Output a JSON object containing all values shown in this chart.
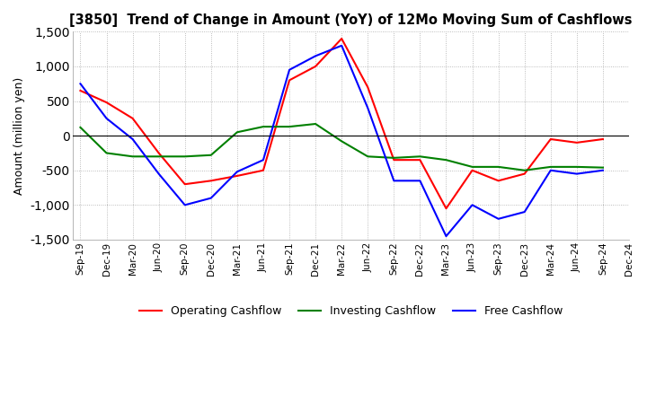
{
  "title": "[3850]  Trend of Change in Amount (YoY) of 12Mo Moving Sum of Cashflows",
  "ylabel": "Amount (million yen)",
  "x_labels": [
    "Sep-19",
    "Dec-19",
    "Mar-20",
    "Jun-20",
    "Sep-20",
    "Dec-20",
    "Mar-21",
    "Jun-21",
    "Sep-21",
    "Dec-21",
    "Mar-22",
    "Jun-22",
    "Sep-22",
    "Dec-22",
    "Mar-23",
    "Jun-23",
    "Sep-23",
    "Dec-23",
    "Mar-24",
    "Jun-24",
    "Sep-24",
    "Dec-24"
  ],
  "operating": [
    650,
    480,
    250,
    -250,
    -700,
    -650,
    -580,
    -500,
    800,
    1000,
    1400,
    700,
    -350,
    -350,
    -1050,
    -500,
    -650,
    -550,
    -50,
    -100,
    -50,
    null
  ],
  "investing": [
    120,
    -250,
    -300,
    -300,
    -300,
    -280,
    50,
    130,
    130,
    170,
    -80,
    -300,
    -320,
    -300,
    -350,
    -450,
    -450,
    -500,
    -450,
    -450,
    -460,
    null
  ],
  "free": [
    750,
    250,
    -50,
    -550,
    -1000,
    -900,
    -520,
    -350,
    950,
    1150,
    1300,
    400,
    -650,
    -650,
    -1450,
    -1000,
    -1200,
    -1100,
    -500,
    -550,
    -500,
    null
  ],
  "ylim": [
    -1500,
    1500
  ],
  "yticks": [
    -1500,
    -1000,
    -500,
    0,
    500,
    1000,
    1500
  ],
  "operating_color": "#ff0000",
  "investing_color": "#008000",
  "free_color": "#0000ff",
  "background_color": "#ffffff",
  "grid_color": "#aaaaaa"
}
